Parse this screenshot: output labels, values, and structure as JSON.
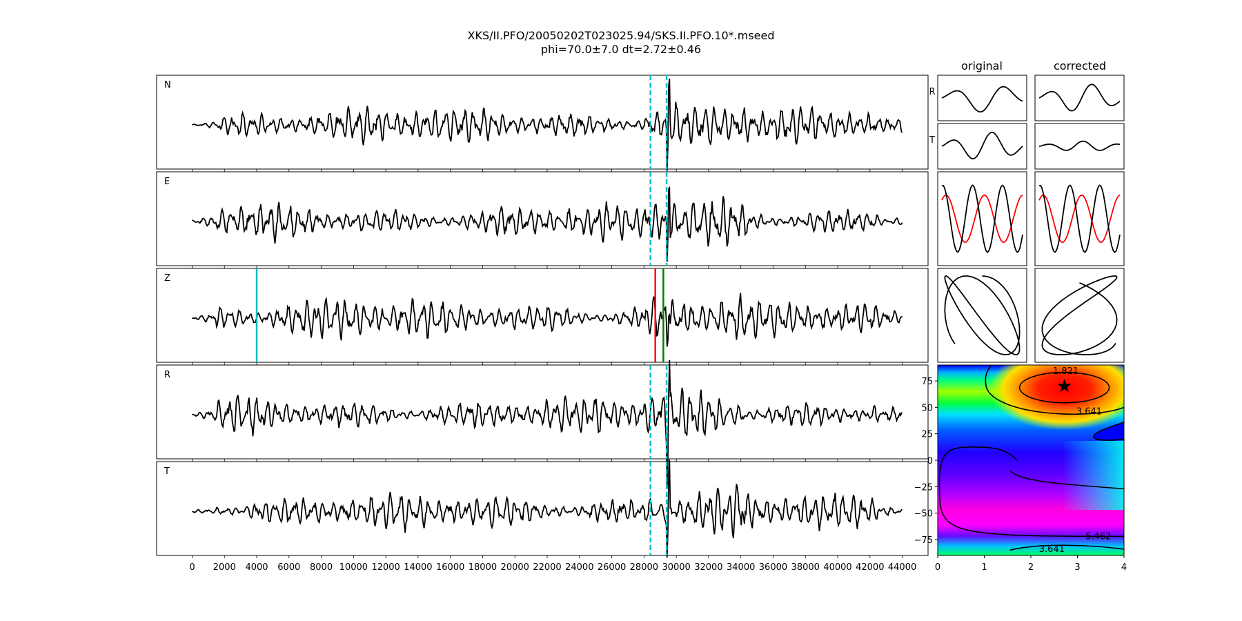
{
  "title": {
    "line1": "XKS/II.PFO/20050202T023025.94/SKS.II.PFO.10*.mseed",
    "line2": "phi=70.0±7.0 dt=2.72±0.46"
  },
  "columns": {
    "original": "original",
    "corrected": "corrected"
  },
  "colors": {
    "trace": "#000000",
    "window_marker": "#00bfbf",
    "pick_red": "#ff0000",
    "pick_green": "#008000",
    "pick_cyan": "#00bfbf",
    "radial_overlay": "#ff0000"
  },
  "chart_data": [
    {
      "type": "line",
      "description_id": "seismograms",
      "traces": [
        {
          "label": "N",
          "markers": "window"
        },
        {
          "label": "E",
          "markers": "window"
        },
        {
          "label": "Z",
          "markers": "picks"
        },
        {
          "label": "R",
          "markers": "window"
        },
        {
          "label": "T",
          "markers": "window"
        }
      ],
      "xlim": [
        -2200,
        45600
      ],
      "xticks": [
        0,
        2000,
        4000,
        6000,
        8000,
        10000,
        12000,
        14000,
        16000,
        18000,
        20000,
        22000,
        24000,
        26000,
        28000,
        30000,
        32000,
        34000,
        36000,
        38000,
        40000,
        42000,
        44000
      ],
      "data_x_range": [
        0,
        44000
      ],
      "window_lines": [
        28400,
        29400
      ],
      "picks": [
        {
          "x": 4000,
          "color": "cyan"
        },
        {
          "x": 28700,
          "color": "red"
        },
        {
          "x": 29200,
          "color": "green"
        }
      ]
    },
    {
      "type": "line",
      "description_id": "particle-motion-panels",
      "row_labels": [
        "R",
        "T"
      ]
    },
    {
      "type": "heatmap",
      "description_id": "phi-dt-grid",
      "xlim": [
        0,
        4
      ],
      "ylim": [
        -90,
        90
      ],
      "xticks": [
        0,
        1,
        2,
        3,
        4
      ],
      "yticks": [
        75,
        50,
        25,
        0,
        -25,
        -50,
        -75
      ],
      "contour_labels": [
        "1.821",
        "3.641",
        "5.462",
        "3.641"
      ],
      "best": {
        "dt": 2.72,
        "phi": 70.0
      }
    }
  ]
}
